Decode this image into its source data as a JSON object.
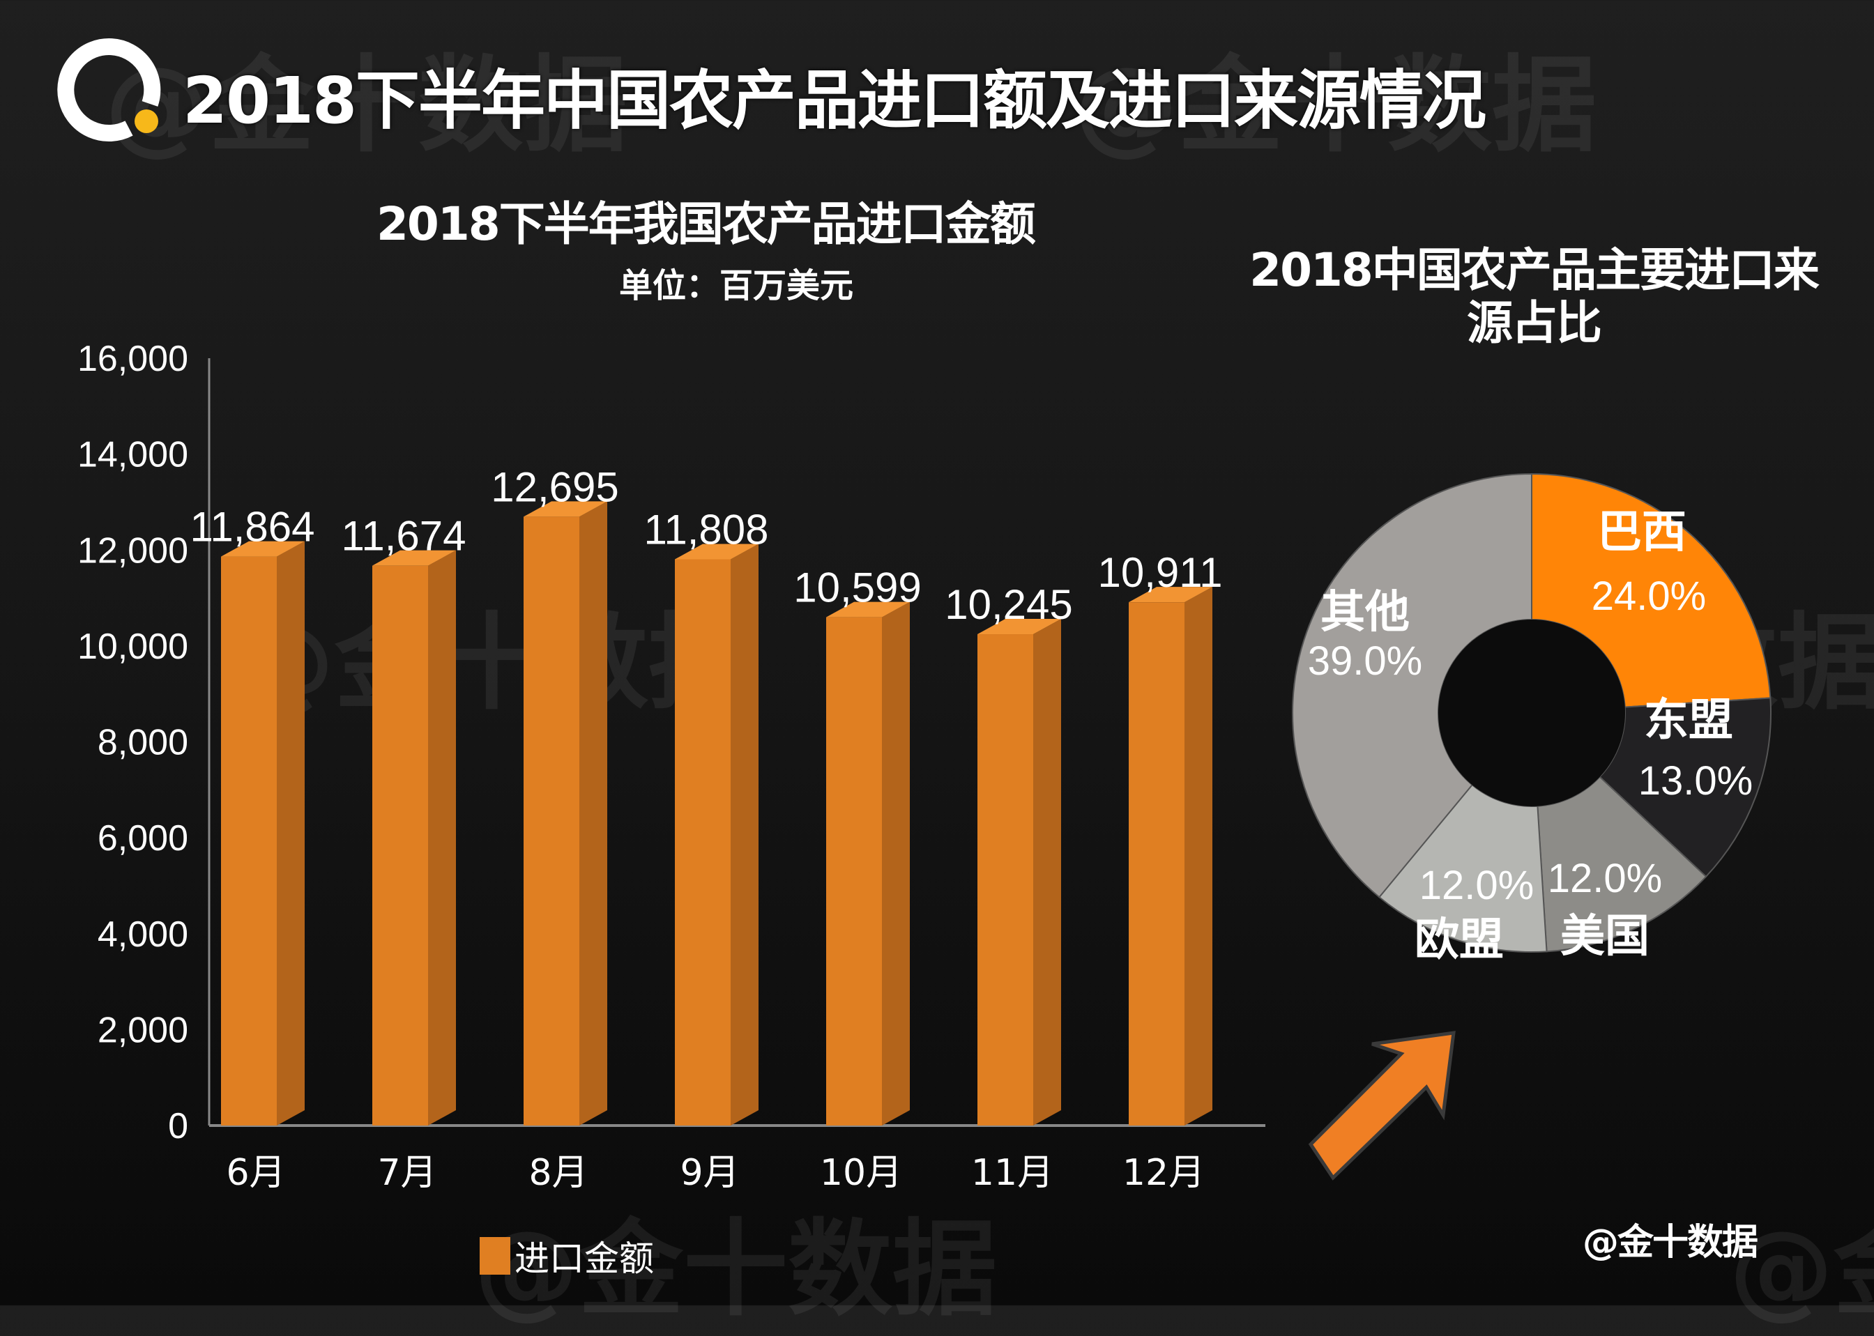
{
  "header": {
    "title": "2018下半年中国农产品进口额及进口来源情况",
    "logo_icon": "q-logo-icon"
  },
  "watermark": "@金十数据",
  "credit": "@金十数据",
  "colors": {
    "bar_front": "#e07f22",
    "bar_side": "#b3641b",
    "bar_top": "#f29433",
    "brazil": "#ff8507",
    "asean": "#222123",
    "usa": "#8d8c88",
    "eu": "#b5b6b2",
    "others": "#a29f9c",
    "arrow": "#f07f24",
    "logo_accent": "#f7b81a"
  },
  "chart_data": [
    {
      "type": "bar",
      "title": "2018下半年我国农产品进口金额",
      "subtitle": "单位：百万美元",
      "categories": [
        "6月",
        "7月",
        "8月",
        "9月",
        "10月",
        "11月",
        "12月"
      ],
      "series": [
        {
          "name": "进口金额",
          "values": [
            11864,
            11674,
            12695,
            11808,
            10599,
            10245,
            10911
          ]
        }
      ],
      "value_labels": [
        "11,864",
        "11,674",
        "12,695",
        "11,808",
        "10,599",
        "10,245",
        "10,911"
      ],
      "yticks": [
        0,
        2000,
        4000,
        6000,
        8000,
        10000,
        12000,
        14000,
        16000
      ],
      "ytick_labels": [
        "0",
        "2,000",
        "4,000",
        "6,000",
        "8,000",
        "10,000",
        "12,000",
        "14,000",
        "16,000"
      ],
      "ylim": [
        0,
        16000
      ],
      "xlabel": "",
      "ylabel": "",
      "grid": false,
      "legend": "bottom"
    },
    {
      "type": "pie",
      "title": "2018中国农产品主要进口来源占比",
      "donut": true,
      "slices": [
        {
          "label": "巴西",
          "value": 24.0,
          "pct_label": "24.0%"
        },
        {
          "label": "东盟",
          "value": 13.0,
          "pct_label": "13.0%"
        },
        {
          "label": "美国",
          "value": 12.0,
          "pct_label": "12.0%"
        },
        {
          "label": "欧盟",
          "value": 12.0,
          "pct_label": "12.0%"
        },
        {
          "label": "其他",
          "value": 39.0,
          "pct_label": "39.0%"
        }
      ]
    }
  ]
}
